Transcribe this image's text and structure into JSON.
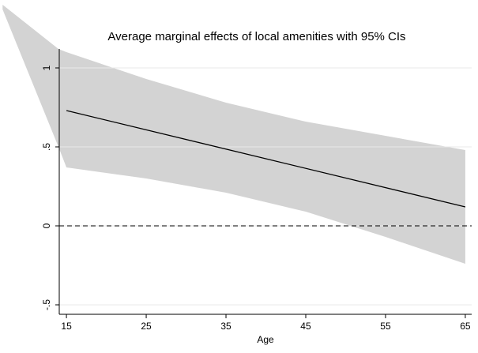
{
  "chart_data": {
    "type": "line-ci",
    "title": "Average marginal effects of local amenities with 95% CIs",
    "xlabel": "Age",
    "band": {
      "color": "#d3d3d3",
      "x": [
        7,
        14,
        15,
        25,
        35,
        45,
        55,
        65
      ],
      "upper": [
        1.4,
        1.12,
        1.1,
        0.93,
        0.78,
        0.66,
        0.57,
        0.48
      ],
      "lower": [
        1.37,
        0.5,
        0.37,
        0.3,
        0.21,
        0.09,
        -0.07,
        -0.24
      ]
    },
    "line": {
      "color": "#000000",
      "x": [
        15,
        65
      ],
      "values": [
        0.73,
        0.12
      ]
    },
    "reference_line": 0,
    "xlim": [
      14.1,
      65.8
    ],
    "xticks": [
      15,
      25,
      35,
      45,
      55,
      65
    ],
    "ylim": [
      -0.56,
      1.12
    ],
    "yticks": [
      {
        "value": -0.5,
        "label": "-.5"
      },
      0,
      {
        "value": 0.5,
        "label": ".5"
      },
      1
    ],
    "grid": true
  }
}
